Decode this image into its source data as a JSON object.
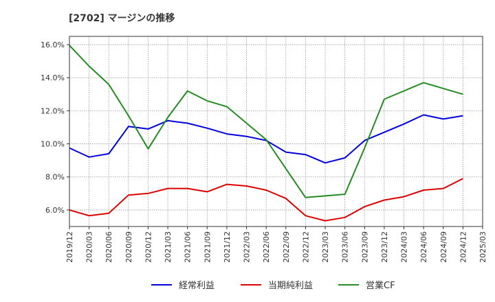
{
  "chart_data": {
    "type": "line",
    "title": "[2702]  マージンの推移",
    "xlabel": "",
    "ylabel": "",
    "x": [
      "2019/12",
      "2020/03",
      "2020/06",
      "2020/09",
      "2020/12",
      "2021/03",
      "2021/06",
      "2021/09",
      "2021/12",
      "2022/03",
      "2022/06",
      "2022/09",
      "2022/12",
      "2023/03",
      "2023/06",
      "2023/09",
      "2023/12",
      "2024/03",
      "2024/06",
      "2024/09",
      "2024/12",
      "2025/03"
    ],
    "ylim": [
      5.0,
      16.5
    ],
    "yticks": [
      "6.0%",
      "8.0%",
      "10.0%",
      "12.0%",
      "14.0%",
      "16.0%"
    ],
    "ytick_values": [
      6,
      8,
      10,
      12,
      14,
      16
    ],
    "grid": true,
    "legend_position": "bottom",
    "series": [
      {
        "name": "経常利益",
        "color": "#0000dd",
        "values": [
          9.75,
          9.2,
          9.4,
          11.05,
          10.9,
          11.4,
          11.25,
          10.95,
          10.6,
          10.45,
          10.2,
          9.5,
          9.35,
          8.85,
          9.15,
          10.2,
          10.7,
          11.2,
          11.75,
          11.5,
          11.7,
          null
        ]
      },
      {
        "name": "当期純利益",
        "color": "#dd0000",
        "values": [
          6.0,
          5.65,
          5.8,
          6.9,
          7.0,
          7.3,
          7.3,
          7.1,
          7.55,
          7.45,
          7.2,
          6.7,
          5.65,
          5.35,
          5.55,
          6.2,
          6.6,
          6.8,
          7.2,
          7.3,
          7.9,
          null
        ]
      },
      {
        "name": "営業CF",
        "color": "#228b22",
        "values": [
          15.95,
          14.7,
          13.6,
          11.7,
          9.7,
          11.6,
          13.2,
          12.6,
          12.25,
          11.25,
          10.25,
          8.5,
          6.75,
          6.85,
          6.95,
          9.75,
          12.7,
          13.2,
          13.7,
          13.35,
          13.0,
          null
        ]
      }
    ]
  }
}
